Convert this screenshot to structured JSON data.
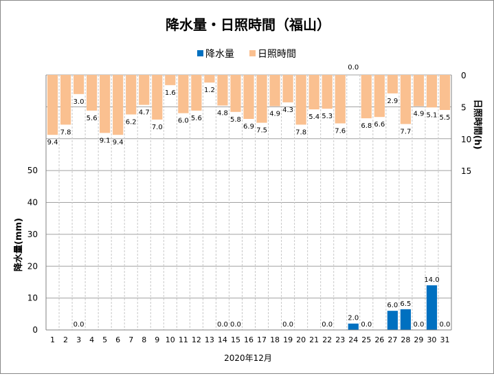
{
  "chart_data": {
    "type": "bar",
    "title": "降水量・日照時間（福山）",
    "xlabel": "2020年12月",
    "ylabel_left": "降水量(mm)",
    "ylabel_right": "日照時間(h)",
    "ylim_left": [
      0,
      80
    ],
    "yticks_left": [
      0,
      10,
      20,
      30,
      40,
      50
    ],
    "ylim_right": [
      0,
      40
    ],
    "yticks_right": [
      0,
      5,
      10,
      15
    ],
    "right_axis_reversed": true,
    "legend_position": "top",
    "categories": [
      "1",
      "2",
      "3",
      "4",
      "5",
      "6",
      "7",
      "8",
      "9",
      "10",
      "11",
      "12",
      "13",
      "14",
      "15",
      "16",
      "17",
      "18",
      "19",
      "20",
      "21",
      "22",
      "23",
      "24",
      "25",
      "26",
      "27",
      "28",
      "29",
      "30",
      "31"
    ],
    "series": [
      {
        "name": "降水量",
        "axis": "left",
        "color": "#0070C0",
        "values": [
          null,
          null,
          0.0,
          null,
          null,
          null,
          null,
          null,
          null,
          null,
          null,
          null,
          null,
          0.0,
          0.0,
          null,
          null,
          null,
          0.0,
          null,
          null,
          0.0,
          null,
          2.0,
          0.0,
          null,
          6.0,
          6.5,
          0.0,
          14.0,
          0.0
        ]
      },
      {
        "name": "日照時間",
        "axis": "right",
        "color": "#FAC090",
        "values": [
          9.4,
          7.8,
          3.0,
          5.6,
          9.1,
          9.4,
          6.2,
          4.7,
          7.0,
          1.6,
          6.0,
          5.6,
          1.2,
          4.8,
          5.8,
          6.9,
          7.5,
          4.9,
          4.3,
          7.8,
          5.4,
          5.3,
          7.6,
          0.0,
          6.8,
          6.6,
          2.9,
          7.7,
          4.9,
          5.1,
          5.5
        ]
      }
    ],
    "grid": true
  }
}
